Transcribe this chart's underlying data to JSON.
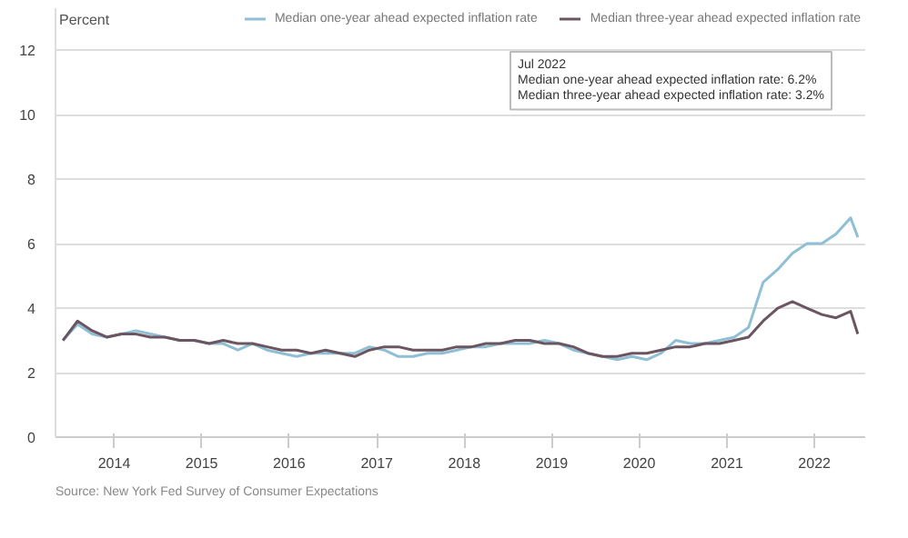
{
  "chart_data": {
    "type": "line",
    "ylabel": "Percent",
    "legend": "top",
    "grid": "y",
    "x": [
      "2013-06",
      "2013-08",
      "2013-10",
      "2013-12",
      "2014-02",
      "2014-04",
      "2014-06",
      "2014-08",
      "2014-10",
      "2014-12",
      "2015-02",
      "2015-04",
      "2015-06",
      "2015-08",
      "2015-10",
      "2015-12",
      "2016-02",
      "2016-04",
      "2016-06",
      "2016-08",
      "2016-10",
      "2016-12",
      "2017-02",
      "2017-04",
      "2017-06",
      "2017-08",
      "2017-10",
      "2017-12",
      "2018-02",
      "2018-04",
      "2018-06",
      "2018-08",
      "2018-10",
      "2018-12",
      "2019-02",
      "2019-04",
      "2019-06",
      "2019-08",
      "2019-10",
      "2019-12",
      "2020-02",
      "2020-04",
      "2020-06",
      "2020-08",
      "2020-10",
      "2020-12",
      "2021-02",
      "2021-04",
      "2021-06",
      "2021-08",
      "2021-10",
      "2021-12",
      "2022-02",
      "2022-04",
      "2022-06",
      "2022-07"
    ],
    "series": [
      {
        "name": "Median one-year ahead expected inflation rate",
        "color": "#8fbfd4",
        "values": [
          3.0,
          3.5,
          3.2,
          3.1,
          3.2,
          3.3,
          3.2,
          3.1,
          3.0,
          3.0,
          2.9,
          2.9,
          2.7,
          2.9,
          2.7,
          2.6,
          2.5,
          2.6,
          2.6,
          2.6,
          2.6,
          2.8,
          2.7,
          2.5,
          2.5,
          2.6,
          2.6,
          2.7,
          2.8,
          2.8,
          2.9,
          2.9,
          2.9,
          3.0,
          2.9,
          2.7,
          2.6,
          2.5,
          2.4,
          2.5,
          2.4,
          2.6,
          3.0,
          2.9,
          2.9,
          3.0,
          3.1,
          3.4,
          4.8,
          5.2,
          5.7,
          6.0,
          6.0,
          6.3,
          6.8,
          6.2
        ]
      },
      {
        "name": "Median three-year ahead expected inflation rate",
        "color": "#6b5560",
        "values": [
          3.0,
          3.6,
          3.3,
          3.1,
          3.2,
          3.2,
          3.1,
          3.1,
          3.0,
          3.0,
          2.9,
          3.0,
          2.9,
          2.9,
          2.8,
          2.7,
          2.7,
          2.6,
          2.7,
          2.6,
          2.5,
          2.7,
          2.8,
          2.8,
          2.7,
          2.7,
          2.7,
          2.8,
          2.8,
          2.9,
          2.9,
          3.0,
          3.0,
          2.9,
          2.9,
          2.8,
          2.6,
          2.5,
          2.5,
          2.6,
          2.6,
          2.7,
          2.8,
          2.8,
          2.9,
          2.9,
          3.0,
          3.1,
          3.6,
          4.0,
          4.2,
          4.0,
          3.8,
          3.7,
          3.9,
          3.2
        ]
      }
    ],
    "xlim": [
      "2013-05",
      "2022-08"
    ],
    "xticks": [
      "2014",
      "2015",
      "2016",
      "2017",
      "2018",
      "2019",
      "2020",
      "2021",
      "2022"
    ],
    "ylim": [
      0,
      13.3
    ],
    "yticks": [
      0,
      2,
      4,
      6,
      8,
      10,
      12
    ],
    "annotations": [
      "Jul 2022",
      "Median one-year ahead expected inflation rate: 6.2%",
      "Median three-year ahead expected inflation rate: 3.2%",
      "Source: New York Fed Survey of Consumer Expectations"
    ]
  }
}
